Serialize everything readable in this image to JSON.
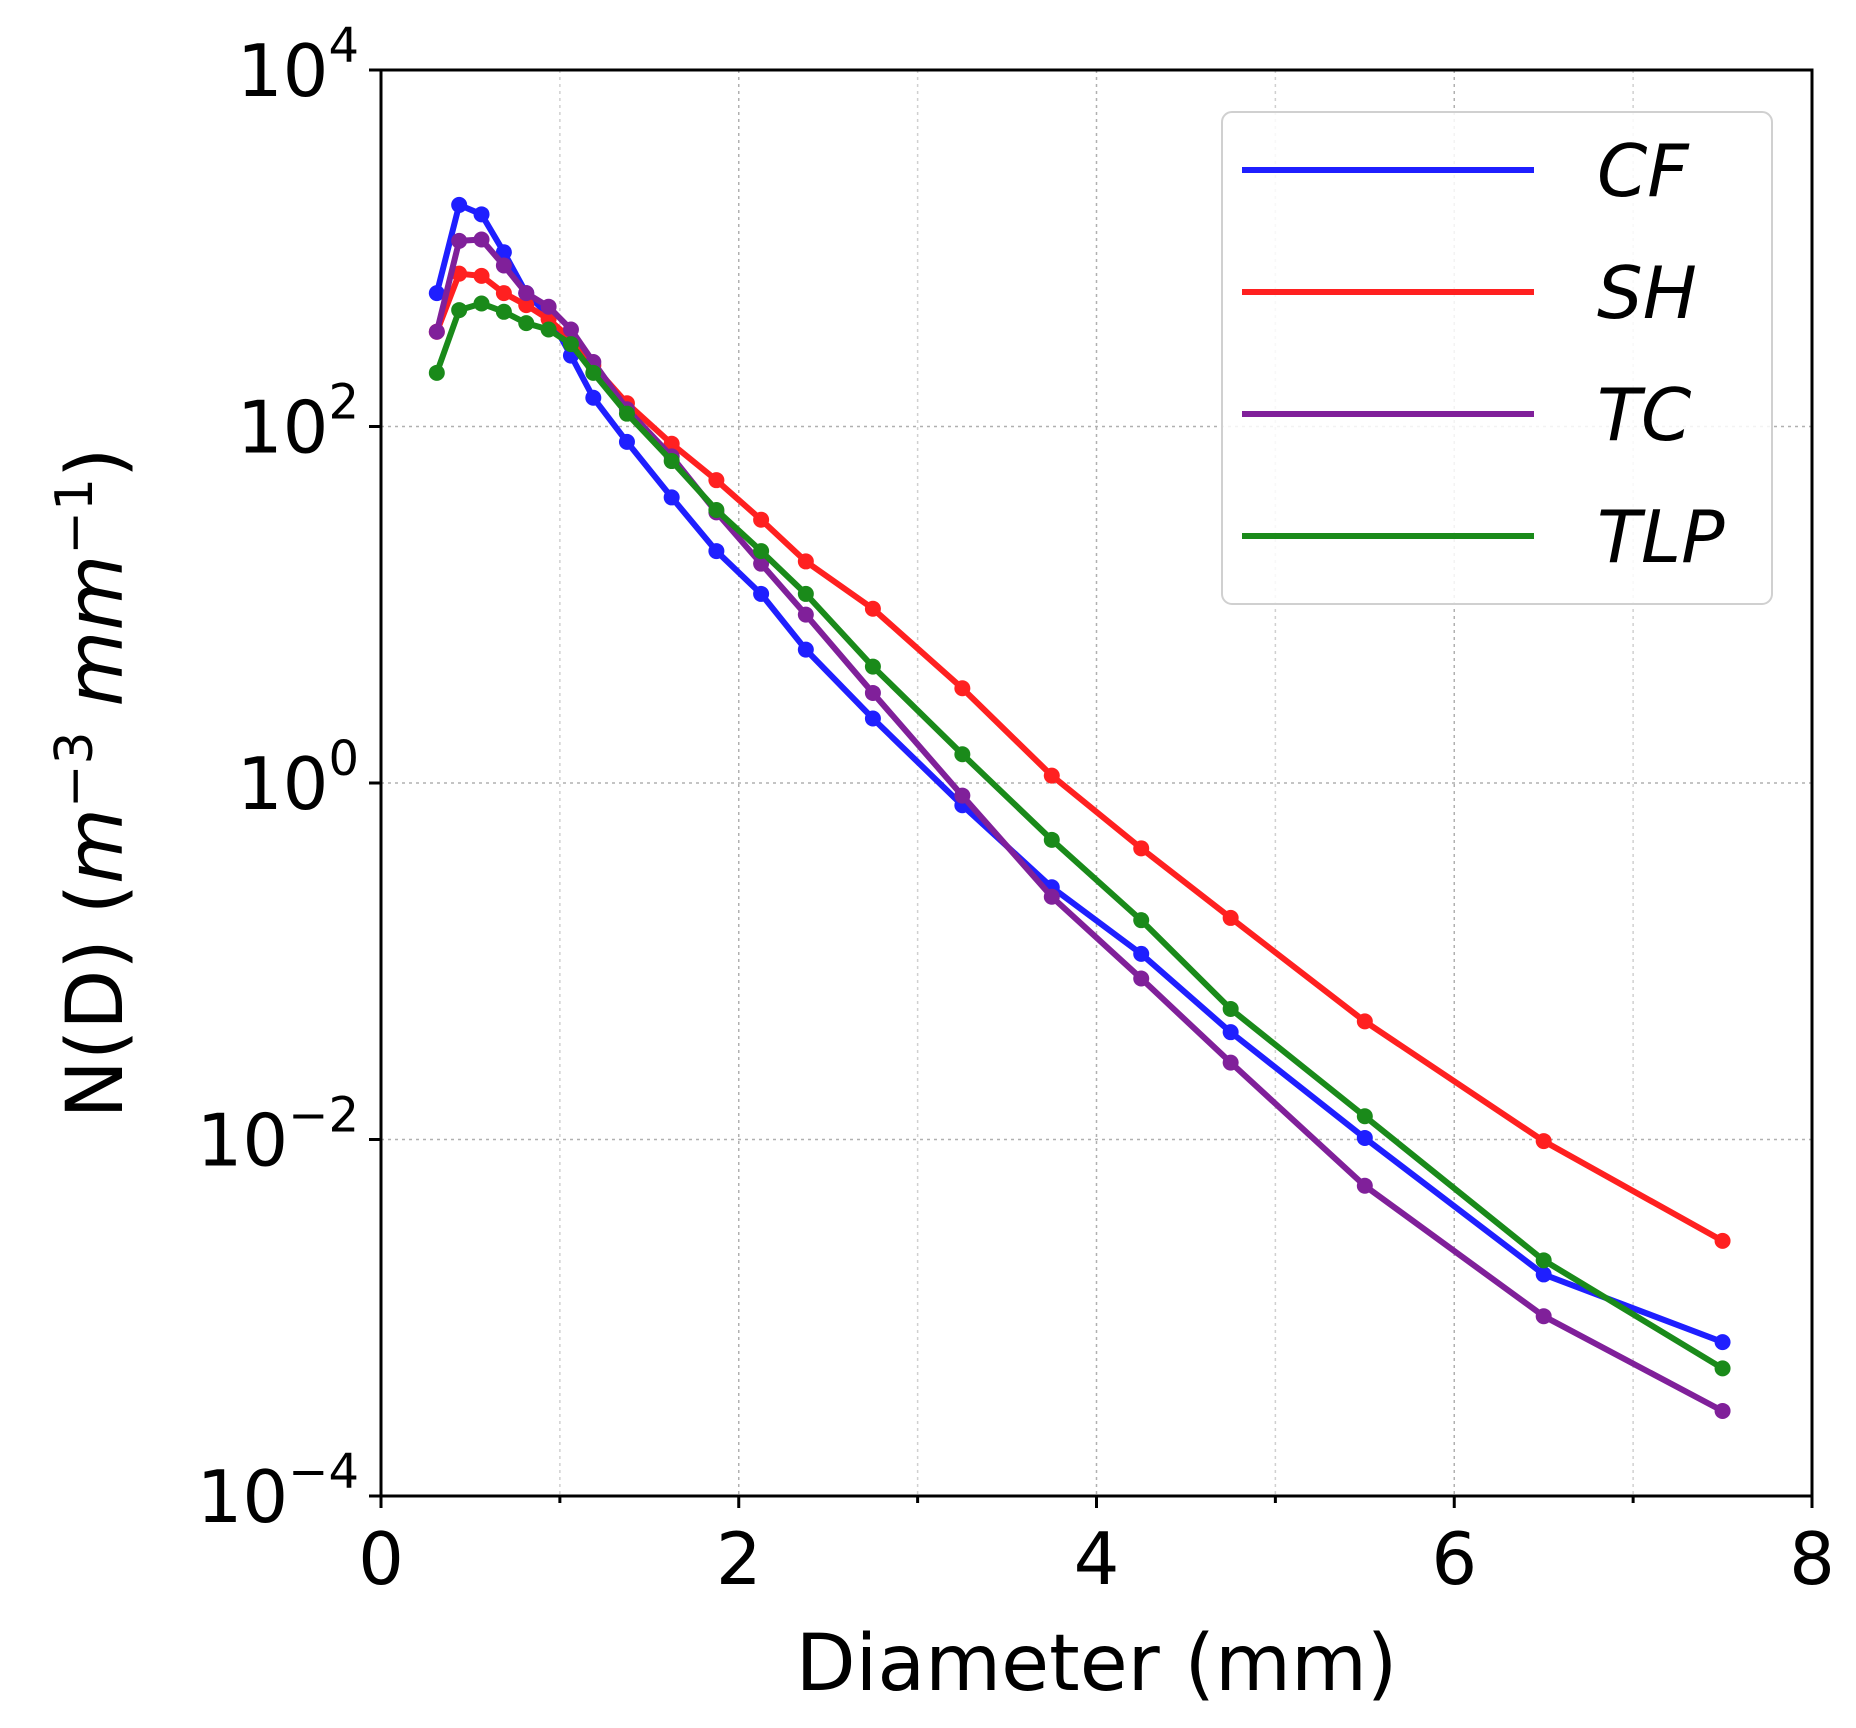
{
  "chart_data": {
    "type": "line",
    "xlabel": "Diameter (mm)",
    "ylabel": {
      "prefix": "N(D) (",
      "m": "m",
      "exp1": "−3",
      "mm": "mm",
      "exp2": "−1",
      "suffix": ")"
    },
    "xlim": [
      0,
      8
    ],
    "ylim": [
      0.0001,
      10000
    ],
    "yscale": "log",
    "grid": true,
    "legend_position": "top-right",
    "x_ticks": [
      {
        "value": 0,
        "label": "0"
      },
      {
        "value": 2,
        "label": "2"
      },
      {
        "value": 4,
        "label": "4"
      },
      {
        "value": 6,
        "label": "6"
      },
      {
        "value": 8,
        "label": "8"
      }
    ],
    "y_ticks": [
      {
        "value": 10000,
        "base": "10",
        "exp": "4"
      },
      {
        "value": 100,
        "base": "10",
        "exp": "2"
      },
      {
        "value": 1,
        "base": "10",
        "exp": "0"
      },
      {
        "value": 0.01,
        "base": "10",
        "exp": "−2"
      },
      {
        "value": 0.0001,
        "base": "10",
        "exp": "−4"
      }
    ],
    "x": [
      0.312,
      0.437,
      0.562,
      0.687,
      0.812,
      0.937,
      1.062,
      1.187,
      1.375,
      1.625,
      1.875,
      2.125,
      2.375,
      2.75,
      3.25,
      3.75,
      4.25,
      4.75,
      5.5,
      6.5,
      7.5
    ],
    "series": [
      {
        "name": "CF",
        "color": "#1f1fff",
        "values": [
          560,
          1750,
          1550,
          950,
          560,
          420,
          250,
          145,
          82,
          40,
          20,
          11.5,
          5.6,
          2.3,
          0.75,
          0.26,
          0.11,
          0.04,
          0.0102,
          0.00175,
          0.00073
        ]
      },
      {
        "name": "SH",
        "color": "#ff2020",
        "values": [
          340,
          720,
          700,
          560,
          480,
          400,
          310,
          220,
          135,
          80,
          50,
          30,
          17.5,
          9.5,
          3.4,
          1.1,
          0.43,
          0.175,
          0.046,
          0.0098,
          0.0027
        ]
      },
      {
        "name": "TC",
        "color": "#80209a",
        "values": [
          340,
          1100,
          1120,
          800,
          560,
          470,
          350,
          230,
          125,
          68,
          33,
          17,
          8.8,
          3.2,
          0.85,
          0.23,
          0.08,
          0.027,
          0.0055,
          0.00102,
          0.0003
        ]
      },
      {
        "name": "TLP",
        "color": "#1a8a1a",
        "values": [
          200,
          450,
          490,
          440,
          380,
          350,
          290,
          200,
          118,
          64,
          34,
          20,
          11.5,
          4.5,
          1.45,
          0.48,
          0.17,
          0.054,
          0.0135,
          0.0021,
          0.00052
        ]
      }
    ]
  }
}
